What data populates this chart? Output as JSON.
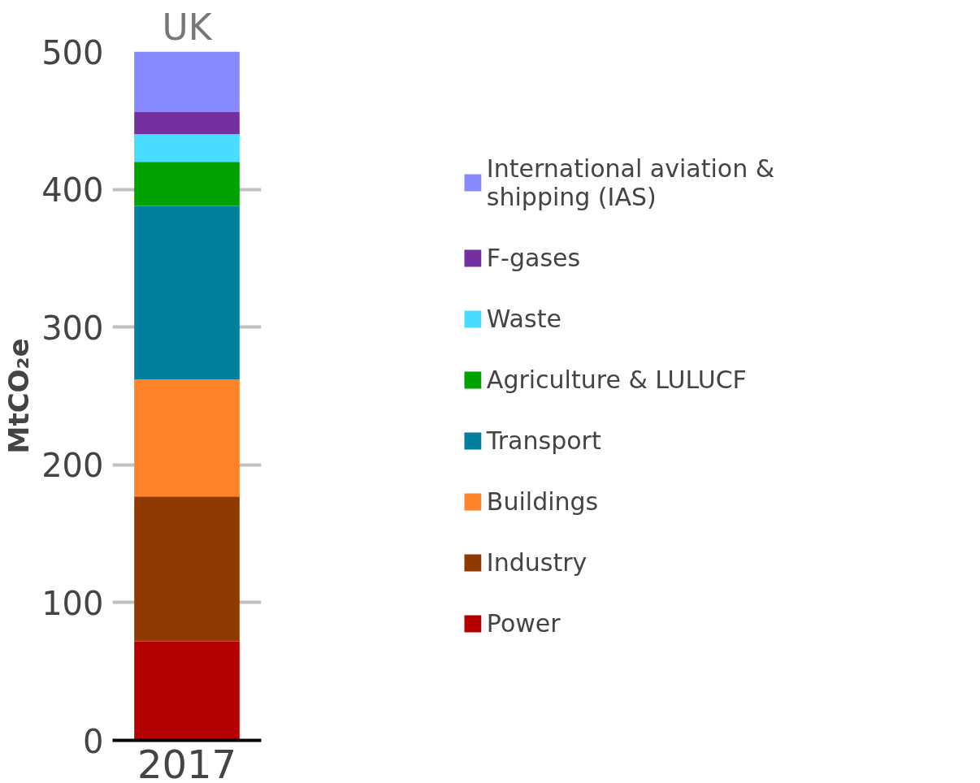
{
  "chart_data": {
    "type": "bar",
    "title": "UK",
    "ylabel": "MtCO₂e",
    "categories": [
      "2017"
    ],
    "stacked": true,
    "series": [
      {
        "name": "Power",
        "color": "#b40000",
        "values": [
          72
        ]
      },
      {
        "name": "Industry",
        "color": "#8e3a00",
        "values": [
          105
        ]
      },
      {
        "name": "Buildings",
        "color": "#ff8128",
        "values": [
          85
        ]
      },
      {
        "name": "Transport",
        "color": "#00809c",
        "values": [
          126
        ]
      },
      {
        "name": "Agriculture & LULUCF",
        "color": "#00a200",
        "values": [
          32
        ]
      },
      {
        "name": "Waste",
        "color": "#48dcff",
        "values": [
          20
        ]
      },
      {
        "name": "F-gases",
        "color": "#7430a0",
        "values": [
          16
        ]
      },
      {
        "name": "International aviation & shipping (IAS)",
        "color": "#8888ff",
        "values": [
          44
        ]
      }
    ],
    "ylim": [
      0,
      500
    ],
    "yticks": [
      0,
      100,
      200,
      300,
      400,
      500
    ],
    "grid": "y",
    "legend": "right"
  }
}
